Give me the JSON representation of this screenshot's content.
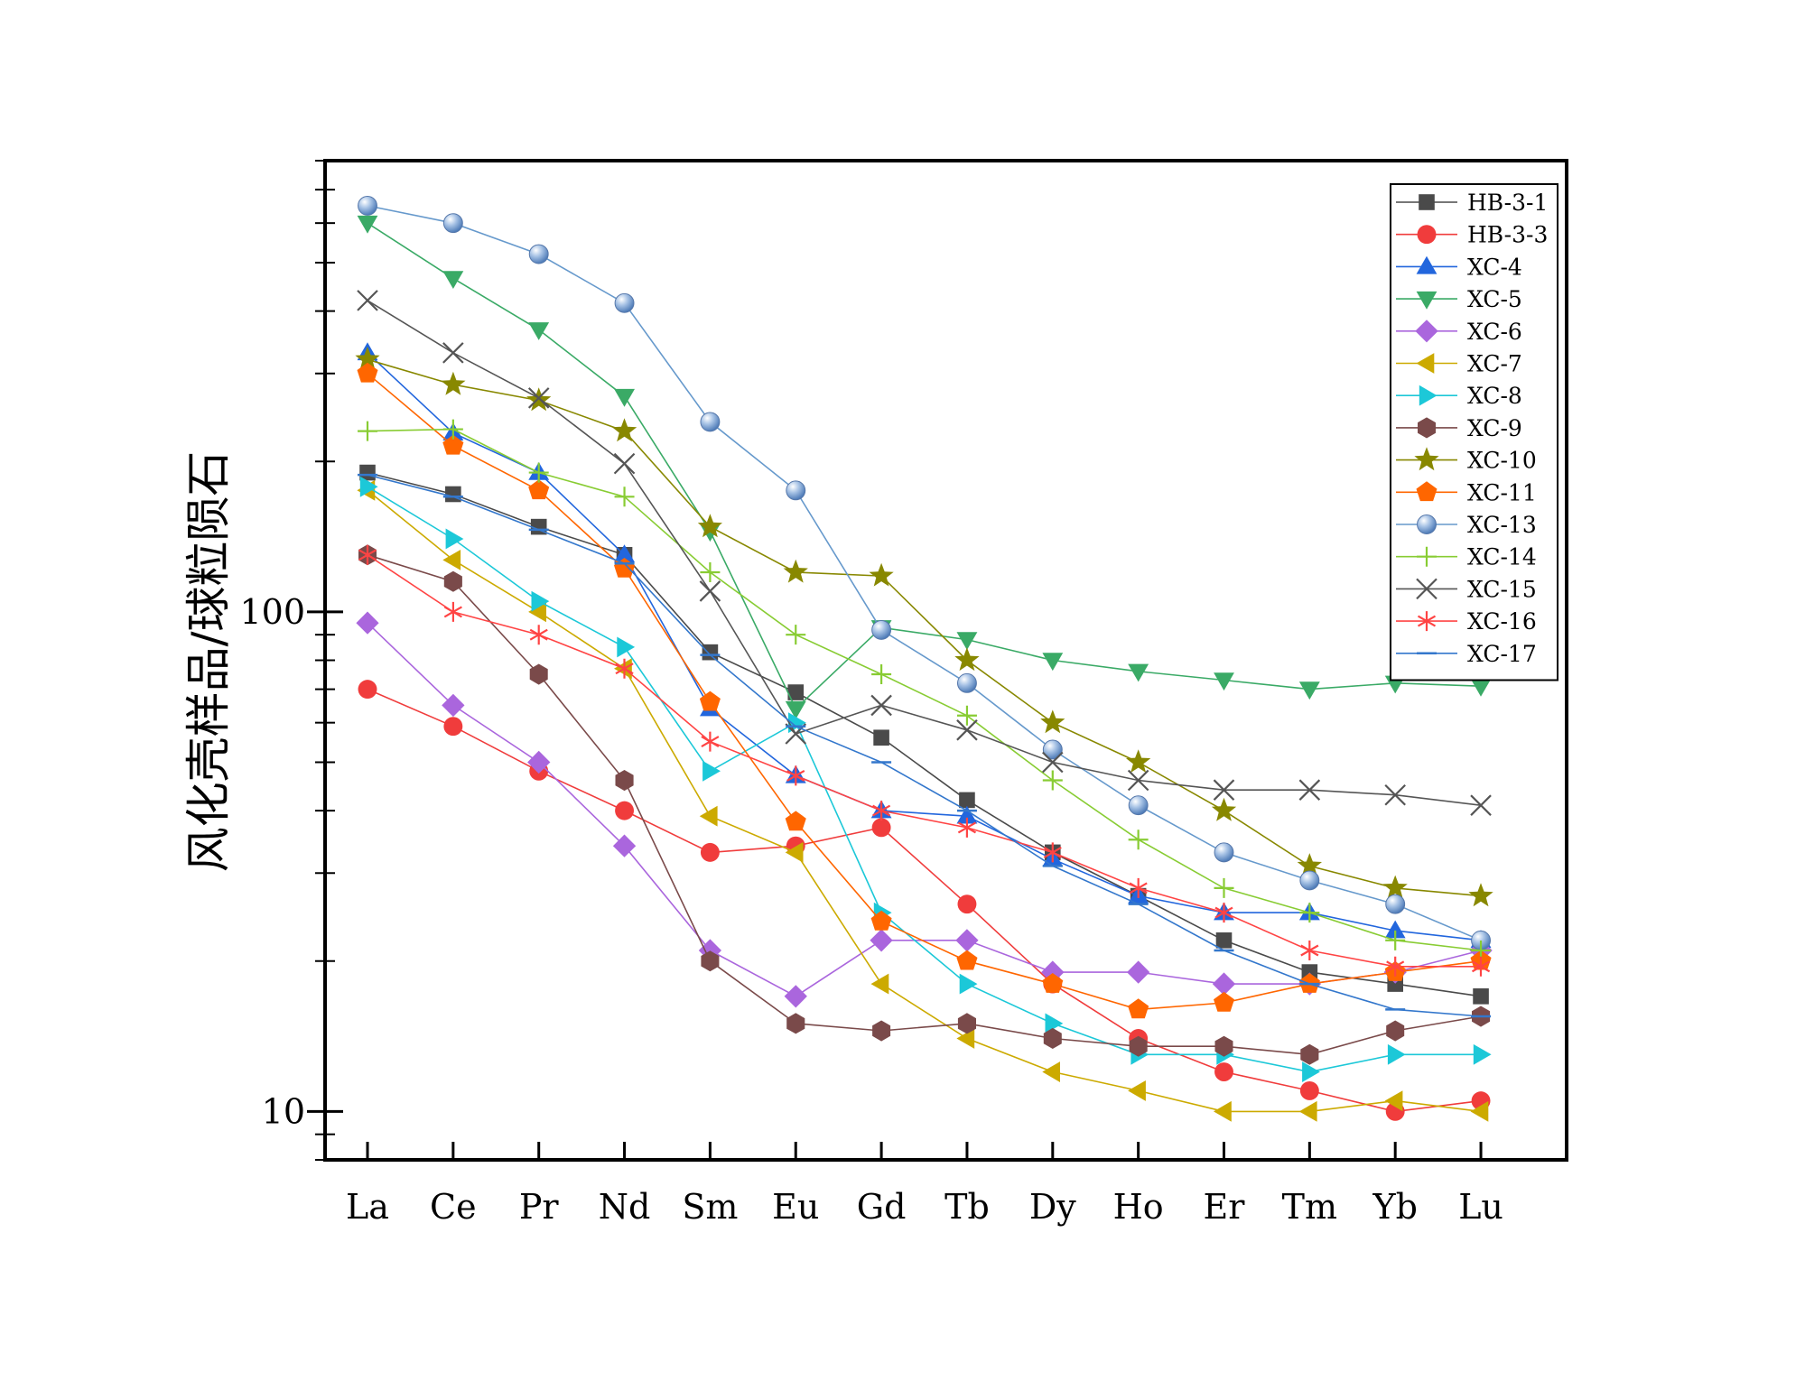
{
  "chart_data": {
    "type": "line",
    "title": "",
    "xlabel": "",
    "ylabel": "风化壳样品/球粒陨石",
    "yscale": "log",
    "ylim": [
      8,
      800
    ],
    "yticks": [
      10,
      100
    ],
    "ytick_labels": [
      "10",
      "100"
    ],
    "categories": [
      "La",
      "Ce",
      "Pr",
      "Nd",
      "Sm",
      "Eu",
      "Gd",
      "Tb",
      "Dy",
      "Ho",
      "Er",
      "Tm",
      "Yb",
      "Lu"
    ],
    "legend_position": "top-right",
    "series": [
      {
        "name": "HB-3-1",
        "color": "#4a4a4a",
        "marker": "square",
        "values": [
          190,
          172,
          148,
          130,
          83,
          69,
          56,
          42,
          33,
          27,
          22,
          19,
          18,
          17
        ]
      },
      {
        "name": "HB-3-3",
        "color": "#f03c3c",
        "marker": "circle",
        "values": [
          70,
          59,
          48,
          40,
          33,
          34,
          37,
          26,
          18,
          14,
          12,
          11,
          10,
          10.5
        ]
      },
      {
        "name": "XC-4",
        "color": "#2266dd",
        "marker": "triangle-up",
        "values": [
          330,
          228,
          190,
          130,
          64,
          47,
          40,
          39,
          32,
          27,
          25,
          25,
          23,
          22
        ]
      },
      {
        "name": "XC-5",
        "color": "#3aaa66",
        "marker": "triangle-down",
        "values": [
          600,
          465,
          367,
          270,
          145,
          64,
          93,
          88,
          80,
          76,
          73,
          70,
          72,
          71
        ]
      },
      {
        "name": "XC-6",
        "color": "#aa66dd",
        "marker": "diamond",
        "values": [
          95,
          65,
          50,
          34,
          21,
          17,
          22,
          22,
          19,
          19,
          18,
          18,
          19,
          21
        ]
      },
      {
        "name": "XC-7",
        "color": "#ccaa00",
        "marker": "triangle-left",
        "values": [
          175,
          127,
          100,
          77,
          39,
          33,
          18,
          14,
          12,
          11,
          10,
          10,
          10.5,
          10
        ]
      },
      {
        "name": "XC-8",
        "color": "#1cc8d8",
        "marker": "triangle-right",
        "values": [
          178,
          140,
          105,
          85,
          48,
          60,
          25,
          18,
          15,
          13,
          13,
          12,
          13,
          13
        ]
      },
      {
        "name": "XC-9",
        "color": "#7a4a4a",
        "marker": "hexagon",
        "values": [
          130,
          115,
          75,
          46,
          20,
          15,
          14.5,
          15,
          14,
          13.5,
          13.5,
          13,
          14.5,
          15.5
        ]
      },
      {
        "name": "XC-10",
        "color": "#888800",
        "marker": "star",
        "values": [
          320,
          285,
          265,
          230,
          148,
          120,
          118,
          80,
          60,
          50,
          40,
          31,
          28,
          27
        ]
      },
      {
        "name": "XC-11",
        "color": "#ff6600",
        "marker": "pentagon",
        "values": [
          300,
          215,
          175,
          122,
          66,
          38,
          24,
          20,
          18,
          16,
          16.5,
          18,
          19,
          20
        ]
      },
      {
        "name": "XC-13",
        "color": "#6699cc",
        "marker": "sphere",
        "values": [
          650,
          600,
          520,
          415,
          240,
          175,
          92,
          72,
          53,
          41,
          33,
          29,
          26,
          22
        ]
      },
      {
        "name": "XC-14",
        "color": "#88cc33",
        "marker": "plus",
        "values": [
          230,
          232,
          190,
          170,
          120,
          90,
          75,
          62,
          46,
          35,
          28,
          25,
          22,
          21
        ]
      },
      {
        "name": "XC-15",
        "color": "#555555",
        "marker": "x",
        "values": [
          420,
          330,
          268,
          198,
          110,
          57,
          65,
          58,
          50,
          46,
          44,
          44,
          43,
          41
        ]
      },
      {
        "name": "XC-16",
        "color": "#ff4444",
        "marker": "asterisk",
        "values": [
          130,
          100,
          90,
          77,
          55,
          47,
          40,
          37,
          33,
          28,
          25,
          21,
          19.5,
          19.5
        ]
      },
      {
        "name": "XC-17",
        "color": "#3377cc",
        "marker": "dash",
        "values": [
          188,
          170,
          146,
          125,
          82,
          59,
          50,
          40,
          31,
          26,
          21,
          18,
          16,
          15.5
        ]
      }
    ]
  }
}
